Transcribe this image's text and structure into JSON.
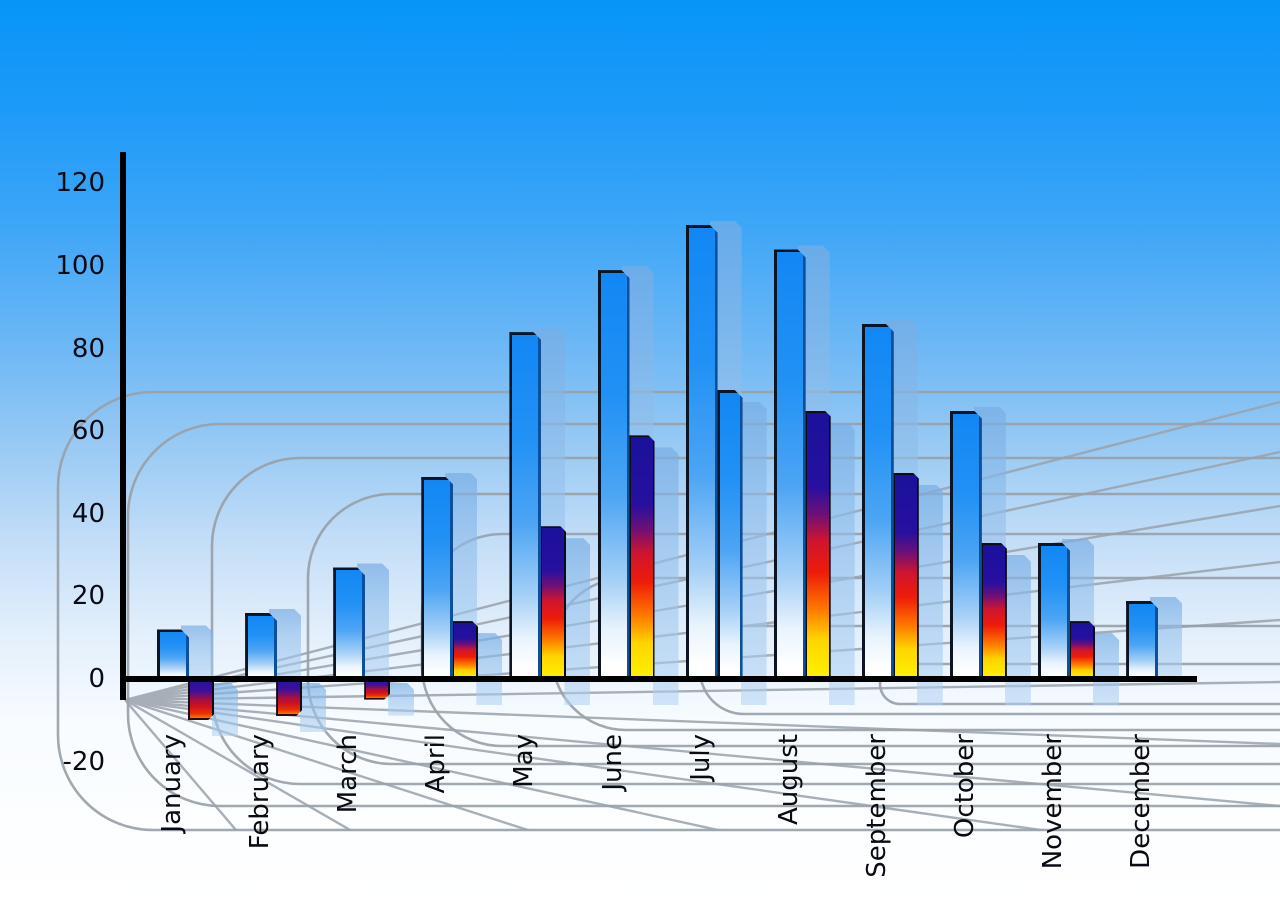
{
  "chart_data": {
    "type": "bar",
    "title": "",
    "xlabel": "",
    "ylabel": "",
    "categories": [
      "January",
      "February",
      "March",
      "April",
      "May",
      "June",
      "July",
      "August",
      "September",
      "October",
      "November",
      "December"
    ],
    "series": [
      {
        "name": "primary-blue-bars",
        "values": [
          12,
          16,
          27,
          49,
          84,
          99,
          110,
          104,
          86,
          65,
          33,
          19
        ]
      },
      {
        "name": "secondary-heat-bars",
        "values": [
          -10,
          -9,
          -5,
          14,
          37,
          59,
          70,
          65,
          50,
          33,
          14,
          null
        ],
        "styles": [
          "heat",
          "heat",
          "heat",
          "heat",
          "heat",
          "heat",
          "blue",
          "heat",
          "heat",
          "heat",
          "heat",
          null
        ]
      }
    ],
    "y_ticks": [
      120,
      100,
      80,
      60,
      40,
      20,
      0,
      -20
    ],
    "ylim": [
      -20,
      120
    ],
    "legend": "none",
    "grid": "perspective-floor-grid"
  },
  "colors": {
    "background_top": "#0795f9",
    "background_bottom": "#ffffff",
    "bar_blue": "#1287f4",
    "bar_echo": "#a9ccf1",
    "heat_navy": "#1a119b",
    "heat_red": "#ee1c08",
    "heat_yellow": "#fff200",
    "grid_gray": "#99a1aa",
    "axis_black": "#000000"
  }
}
